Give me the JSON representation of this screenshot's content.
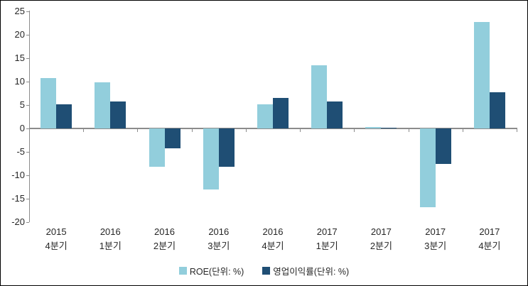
{
  "chart_data": {
    "type": "bar",
    "title": "",
    "xlabel": "",
    "ylabel": "",
    "categories": [
      {
        "line1": "2015",
        "line2": "4분기"
      },
      {
        "line1": "2016",
        "line2": "1분기"
      },
      {
        "line1": "2016",
        "line2": "2분기"
      },
      {
        "line1": "2016",
        "line2": "3분기"
      },
      {
        "line1": "2016",
        "line2": "4분기"
      },
      {
        "line1": "2017",
        "line2": "1분기"
      },
      {
        "line1": "2017",
        "line2": "2분기"
      },
      {
        "line1": "2017",
        "line2": "3분기"
      },
      {
        "line1": "2017",
        "line2": "4분기"
      }
    ],
    "series": [
      {
        "name": "ROE(단위: %)",
        "color": "#92CEDC",
        "values": [
          10.8,
          9.9,
          -8.2,
          -13.0,
          5.1,
          13.5,
          0.3,
          -16.8,
          22.8
        ]
      },
      {
        "name": "영업이익률(단위: %)",
        "color": "#1F4E74",
        "values": [
          5.2,
          5.7,
          -4.2,
          -8.1,
          6.5,
          5.8,
          0.2,
          -7.6,
          7.7
        ]
      }
    ],
    "y_axis": {
      "min": -20,
      "max": 25,
      "step": 5,
      "tick_labels": [
        "25",
        "20",
        "15",
        "10",
        "5",
        "0",
        "-5",
        "-10",
        "-15",
        "-20"
      ]
    },
    "ylim": [
      -20,
      25
    ],
    "grid": false,
    "legend_position": "bottom",
    "colors": {
      "axis": "#8C8C8C",
      "text": "#262626",
      "background": "#FFFFFF",
      "border": "#000000"
    }
  }
}
